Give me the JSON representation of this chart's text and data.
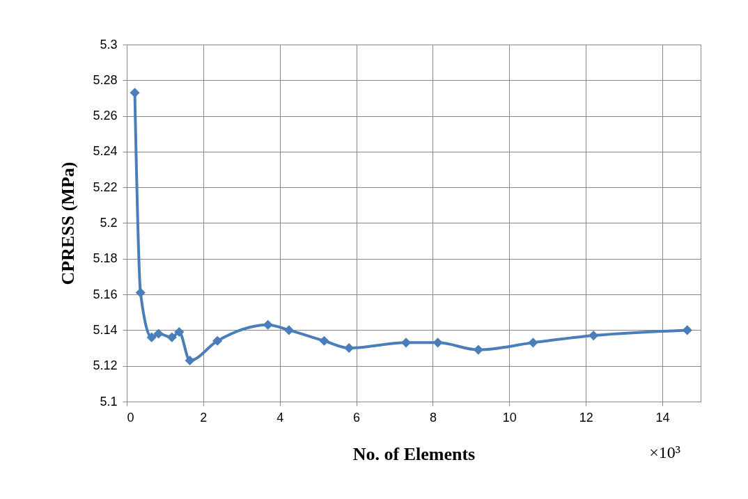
{
  "chart_data": {
    "type": "line",
    "xlabel": "No. of Elements",
    "ylabel": "CPRESS (MPa)",
    "x": [
      0.21,
      0.36,
      0.65,
      0.83,
      1.18,
      1.37,
      1.65,
      2.37,
      3.69,
      4.24,
      5.16,
      5.81,
      7.3,
      8.13,
      9.19,
      10.62,
      12.2,
      14.65
    ],
    "series": [
      {
        "color": "#4a7ebb",
        "values": [
          5.273,
          5.161,
          5.136,
          5.138,
          5.136,
          5.139,
          5.123,
          5.134,
          5.143,
          5.14,
          5.134,
          5.13,
          5.133,
          5.133,
          5.129,
          5.133,
          5.137,
          5.14
        ]
      }
    ],
    "xlim": [
      0,
      15
    ],
    "xticks": [
      0,
      2,
      4,
      6,
      8,
      10,
      12,
      14
    ],
    "ylim": [
      5.1,
      5.3
    ],
    "yticks": [
      5.1,
      5.12,
      5.14,
      5.16,
      5.18,
      5.2,
      5.22,
      5.24,
      5.26,
      5.28,
      5.3
    ],
    "grid": true,
    "marker": "diamond",
    "line_style": "solid",
    "annotations": [
      "×10³"
    ]
  }
}
